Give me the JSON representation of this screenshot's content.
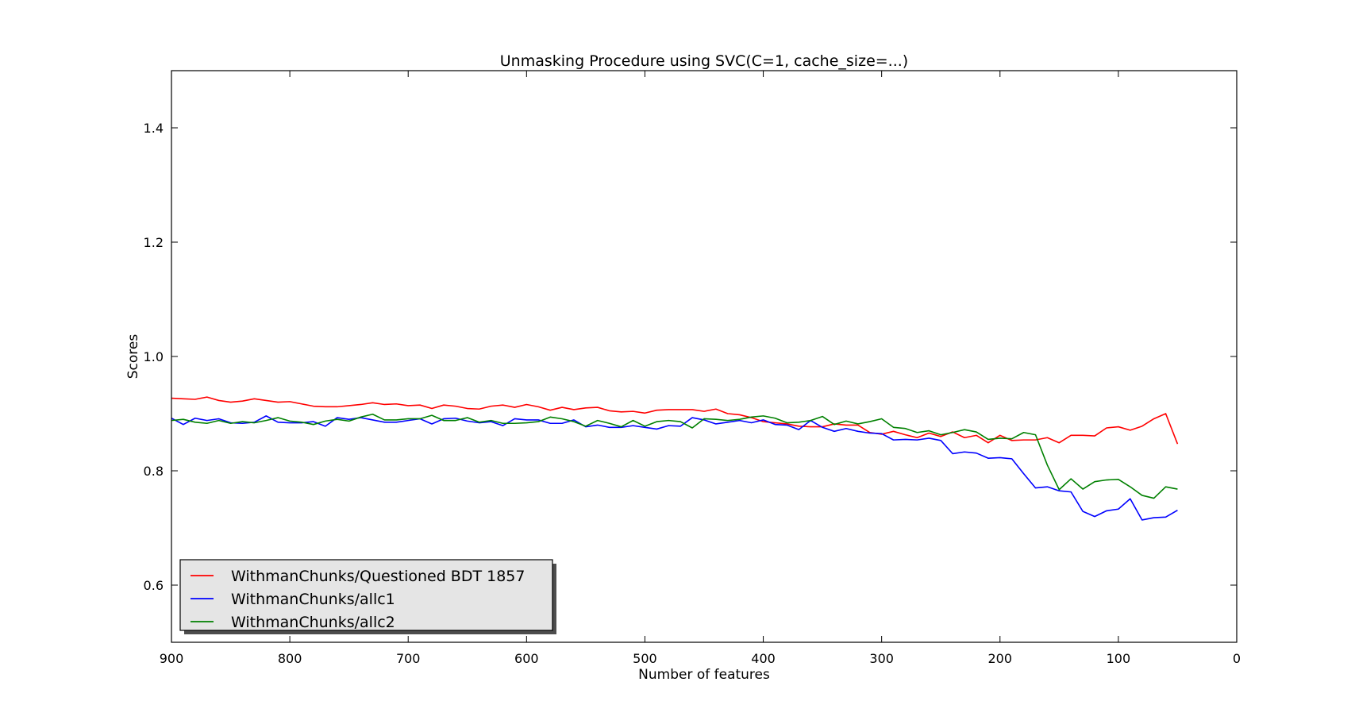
{
  "chart_data": {
    "type": "line",
    "title": "Unmasking Procedure using SVC(C=1, cache_size=...)",
    "xlabel": "Number of features",
    "ylabel": "Scores",
    "xlim": [
      900,
      0
    ],
    "ylim": [
      0.5,
      1.5
    ],
    "x_ticks": [
      900,
      800,
      700,
      600,
      500,
      400,
      300,
      200,
      100,
      0
    ],
    "y_ticks": [
      0.6,
      0.8,
      1.0,
      1.2,
      1.4
    ],
    "x_tick_labels": [
      "900",
      "800",
      "700",
      "600",
      "500",
      "400",
      "300",
      "200",
      "100",
      "0"
    ],
    "y_tick_labels": [
      "0.6",
      "0.8",
      "1.0",
      "1.2",
      "1.4"
    ],
    "grid": false,
    "legend_position": "lower-left",
    "x": [
      900,
      890,
      880,
      870,
      860,
      850,
      840,
      830,
      820,
      810,
      800,
      790,
      780,
      770,
      760,
      750,
      740,
      730,
      720,
      710,
      700,
      690,
      680,
      670,
      660,
      650,
      640,
      630,
      620,
      610,
      600,
      590,
      580,
      570,
      560,
      550,
      540,
      530,
      520,
      510,
      500,
      490,
      480,
      470,
      460,
      450,
      440,
      430,
      420,
      410,
      400,
      390,
      380,
      370,
      360,
      350,
      340,
      330,
      320,
      310,
      300,
      290,
      280,
      270,
      260,
      250,
      240,
      230,
      220,
      210,
      200,
      190,
      180,
      170,
      160,
      150,
      140,
      130,
      120,
      110,
      100,
      90,
      80,
      70,
      60,
      50
    ],
    "series": [
      {
        "name": "WithmanChunks/Questioned BDT 1857",
        "color": "#ff0000",
        "values": [
          0.927,
          0.926,
          0.925,
          0.929,
          0.923,
          0.92,
          0.922,
          0.926,
          0.923,
          0.92,
          0.921,
          0.917,
          0.913,
          0.912,
          0.912,
          0.914,
          0.916,
          0.919,
          0.916,
          0.917,
          0.914,
          0.915,
          0.909,
          0.915,
          0.913,
          0.909,
          0.908,
          0.913,
          0.915,
          0.911,
          0.916,
          0.912,
          0.906,
          0.911,
          0.907,
          0.91,
          0.911,
          0.905,
          0.903,
          0.904,
          0.901,
          0.906,
          0.907,
          0.907,
          0.907,
          0.904,
          0.908,
          0.9,
          0.898,
          0.893,
          0.886,
          0.884,
          0.882,
          0.878,
          0.877,
          0.877,
          0.882,
          0.88,
          0.88,
          0.867,
          0.864,
          0.869,
          0.863,
          0.858,
          0.866,
          0.86,
          0.868,
          0.858,
          0.862,
          0.849,
          0.862,
          0.853,
          0.854,
          0.854,
          0.858,
          0.849,
          0.862,
          0.862,
          0.861,
          0.875,
          0.877,
          0.871,
          0.878,
          0.891,
          0.9,
          0.847
        ]
      },
      {
        "name": "WithmanChunks/allc1",
        "color": "#0000ff",
        "values": [
          0.892,
          0.881,
          0.892,
          0.888,
          0.891,
          0.884,
          0.883,
          0.885,
          0.896,
          0.885,
          0.884,
          0.884,
          0.886,
          0.878,
          0.893,
          0.89,
          0.893,
          0.889,
          0.885,
          0.885,
          0.888,
          0.891,
          0.882,
          0.891,
          0.892,
          0.887,
          0.884,
          0.886,
          0.879,
          0.891,
          0.889,
          0.889,
          0.883,
          0.883,
          0.889,
          0.877,
          0.88,
          0.876,
          0.876,
          0.879,
          0.876,
          0.873,
          0.879,
          0.878,
          0.893,
          0.889,
          0.882,
          0.885,
          0.888,
          0.884,
          0.889,
          0.881,
          0.88,
          0.872,
          0.888,
          0.876,
          0.869,
          0.874,
          0.869,
          0.866,
          0.865,
          0.854,
          0.855,
          0.854,
          0.857,
          0.853,
          0.83,
          0.833,
          0.831,
          0.822,
          0.823,
          0.821,
          0.795,
          0.77,
          0.772,
          0.765,
          0.763,
          0.729,
          0.72,
          0.73,
          0.733,
          0.751,
          0.714,
          0.718,
          0.719,
          0.731
        ]
      },
      {
        "name": "WithmanChunks/allc2",
        "color": "#008000",
        "values": [
          0.888,
          0.89,
          0.885,
          0.883,
          0.888,
          0.883,
          0.886,
          0.884,
          0.888,
          0.893,
          0.887,
          0.885,
          0.881,
          0.887,
          0.89,
          0.887,
          0.894,
          0.899,
          0.889,
          0.889,
          0.891,
          0.891,
          0.897,
          0.888,
          0.888,
          0.893,
          0.885,
          0.888,
          0.883,
          0.883,
          0.884,
          0.886,
          0.894,
          0.891,
          0.886,
          0.878,
          0.888,
          0.883,
          0.877,
          0.888,
          0.878,
          0.886,
          0.888,
          0.886,
          0.875,
          0.891,
          0.89,
          0.888,
          0.89,
          0.894,
          0.896,
          0.892,
          0.884,
          0.885,
          0.888,
          0.895,
          0.881,
          0.887,
          0.882,
          0.886,
          0.891,
          0.876,
          0.874,
          0.867,
          0.87,
          0.863,
          0.867,
          0.872,
          0.868,
          0.855,
          0.857,
          0.856,
          0.867,
          0.863,
          0.81,
          0.767,
          0.786,
          0.768,
          0.781,
          0.784,
          0.785,
          0.772,
          0.757,
          0.752,
          0.772,
          0.768
        ]
      }
    ]
  }
}
